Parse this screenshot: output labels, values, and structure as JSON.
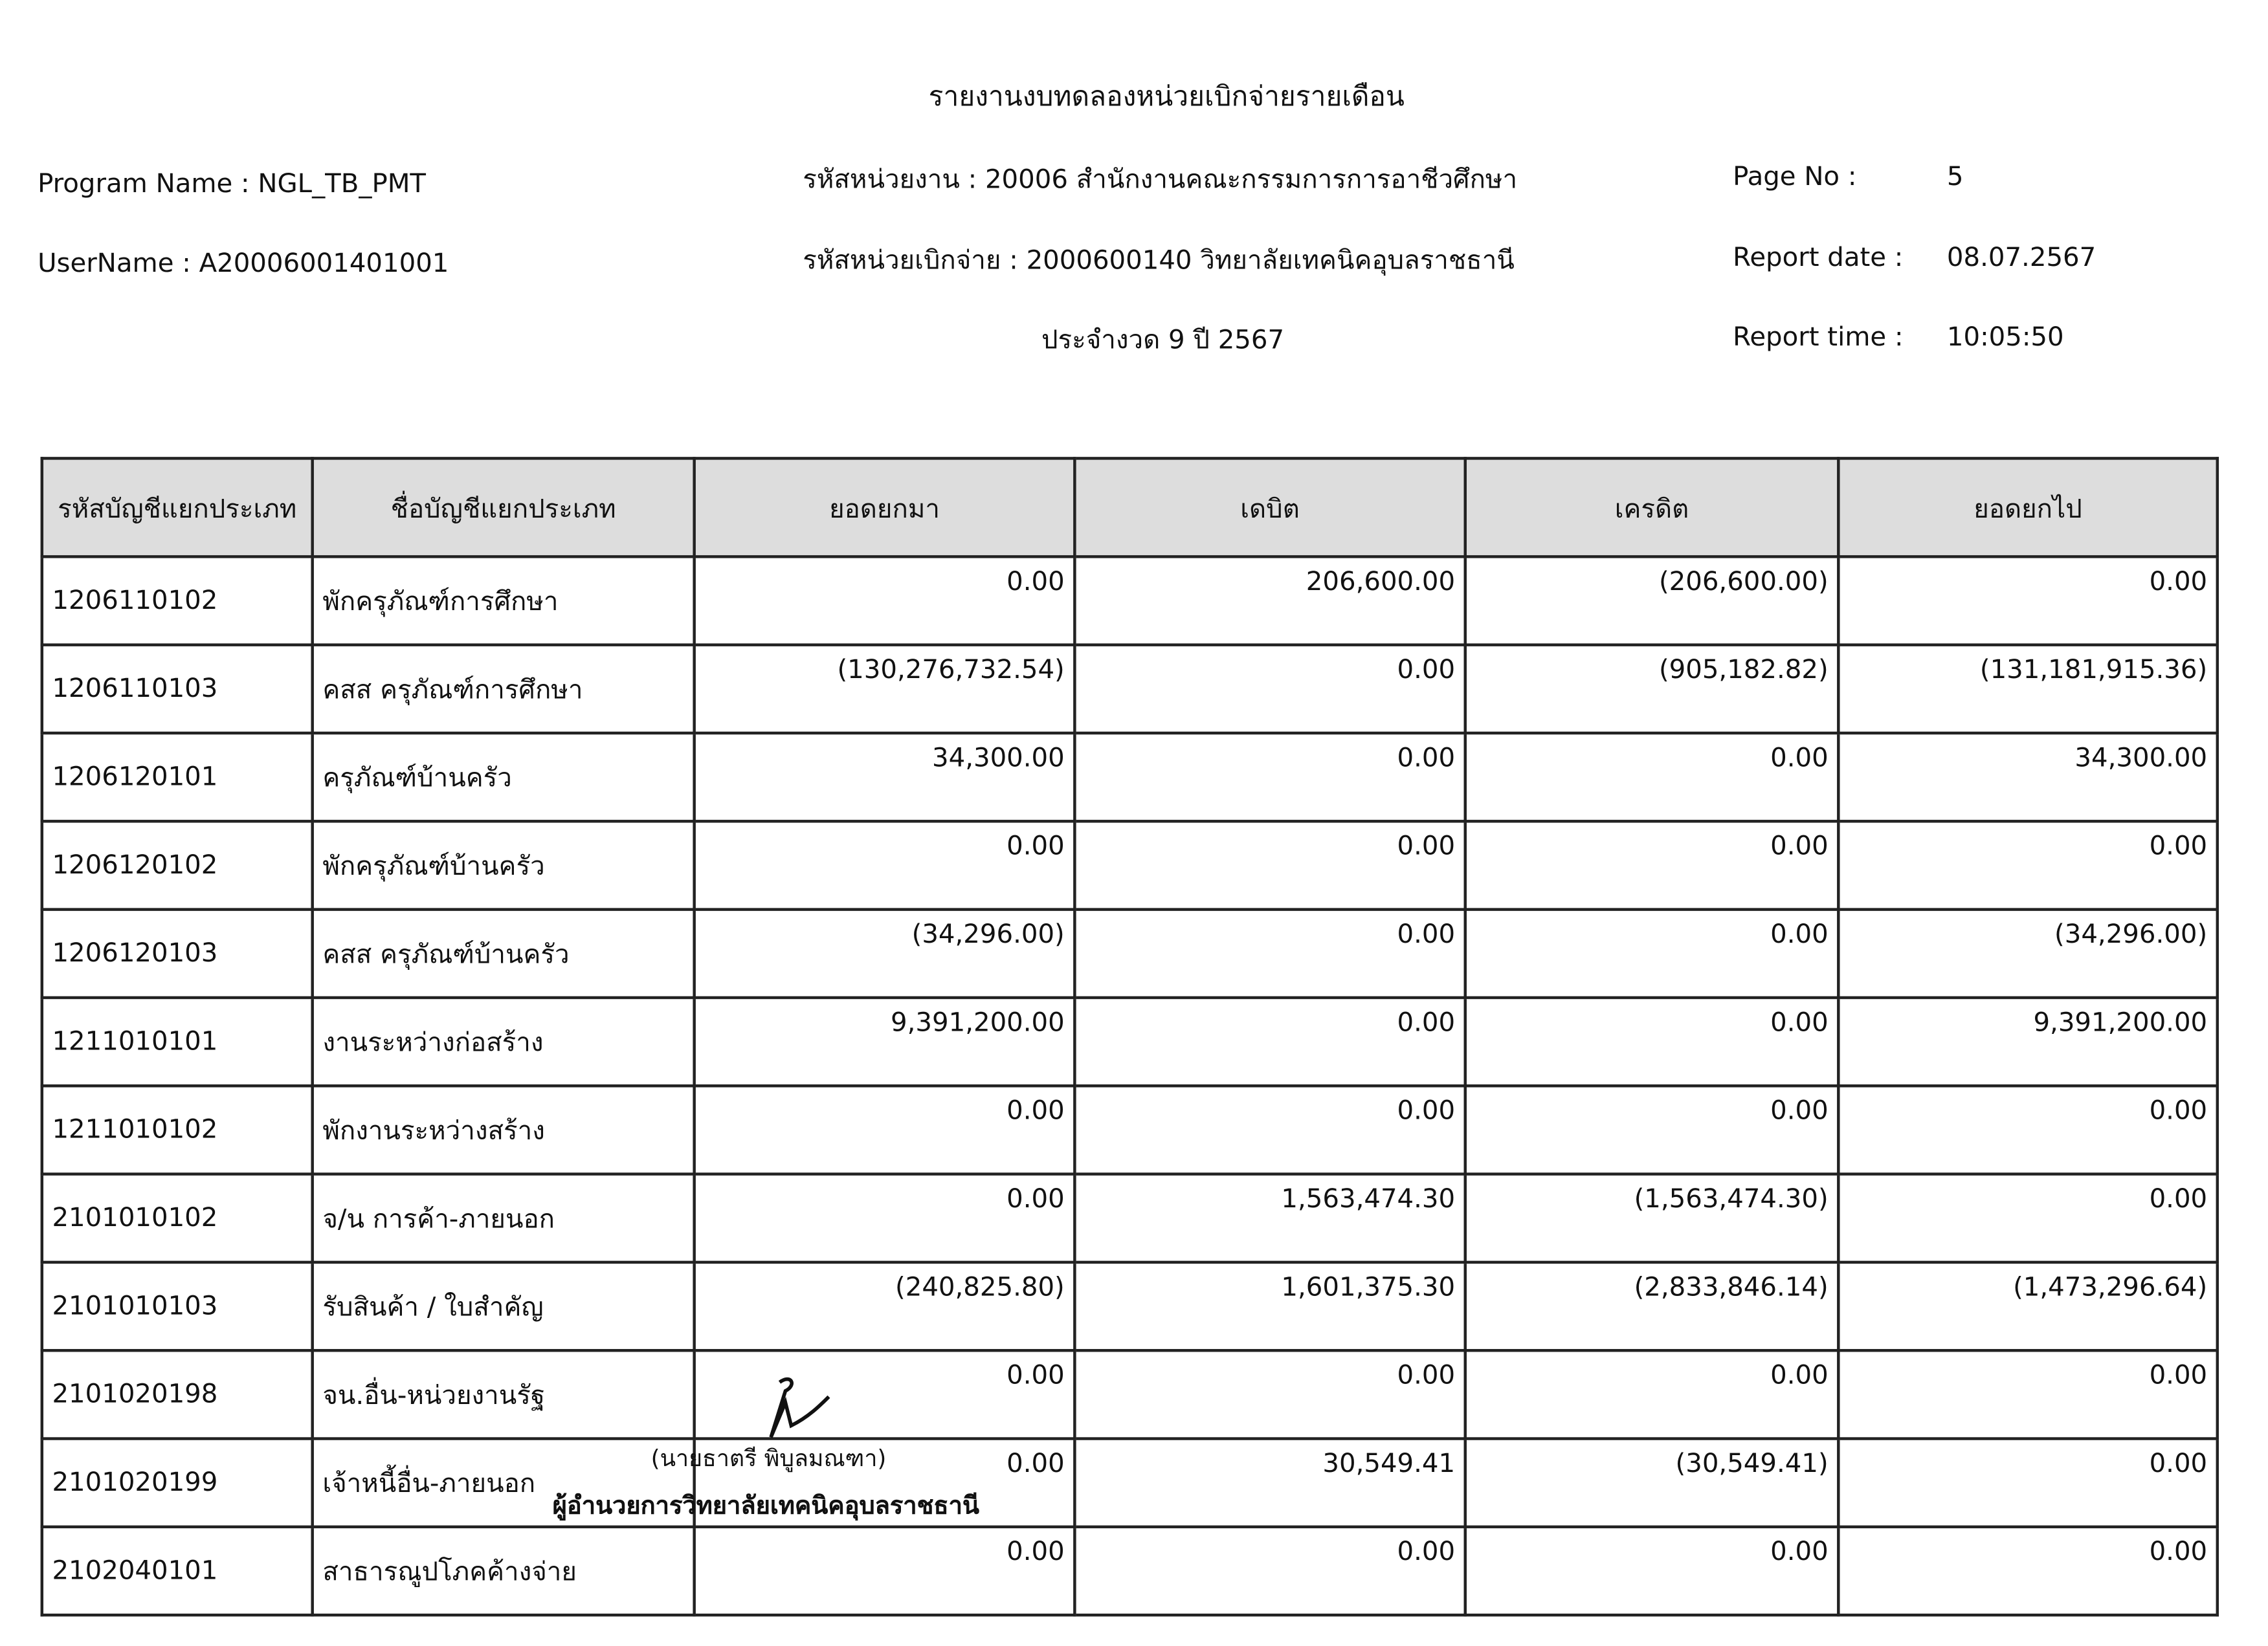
{
  "header": {
    "title": "รายงานงบทดลองหน่วยเบิกจ่ายรายเดือน",
    "program_name": "Program Name : NGL_TB_PMT",
    "user_name": "UserName : A20006001401001",
    "agency": "รหัสหน่วยงาน : 20006 สำนักงานคณะกรรมการการอาชีวศึกษา",
    "disbursing_unit": "รหัสหน่วยเบิกจ่าย : 2000600140 วิทยาลัยเทคนิคอุบลราชธานี",
    "period": "ประจำงวด 9 ปี 2567",
    "page_no_label": "Page No :",
    "page_no": "5",
    "report_date_label": "Report date :",
    "report_date": "08.07.2567",
    "report_time_label": "Report time :",
    "report_time": "10:05:50"
  },
  "table": {
    "columns": [
      "รหัสบัญชีแยกประเภท",
      "ชื่อบัญชีแยกประเภท",
      "ยอดยกมา",
      "เดบิต",
      "เครดิต",
      "ยอดยกไป"
    ],
    "rows": [
      [
        "1206110102",
        "พักครุภัณฑ์การศึกษา",
        "0.00",
        "206,600.00",
        "(206,600.00)",
        "0.00"
      ],
      [
        "1206110103",
        "คสส ครุภัณฑ์การศึกษา",
        "(130,276,732.54)",
        "0.00",
        "(905,182.82)",
        "(131,181,915.36)"
      ],
      [
        "1206120101",
        "ครุภัณฑ์บ้านครัว",
        "34,300.00",
        "0.00",
        "0.00",
        "34,300.00"
      ],
      [
        "1206120102",
        "พักครุภัณฑ์บ้านครัว",
        "0.00",
        "0.00",
        "0.00",
        "0.00"
      ],
      [
        "1206120103",
        "คสส ครุภัณฑ์บ้านครัว",
        "(34,296.00)",
        "0.00",
        "0.00",
        "(34,296.00)"
      ],
      [
        "1211010101",
        "งานระหว่างก่อสร้าง",
        "9,391,200.00",
        "0.00",
        "0.00",
        "9,391,200.00"
      ],
      [
        "1211010102",
        "พักงานระหว่างสร้าง",
        "0.00",
        "0.00",
        "0.00",
        "0.00"
      ],
      [
        "2101010102",
        "จ/น การค้า-ภายนอก",
        "0.00",
        "1,563,474.30",
        "(1,563,474.30)",
        "0.00"
      ],
      [
        "2101010103",
        "รับสินค้า / ใบสำคัญ",
        "(240,825.80)",
        "1,601,375.30",
        "(2,833,846.14)",
        "(1,473,296.64)"
      ],
      [
        "2101020198",
        "จน.อื่น-หน่วยงานรัฐ",
        "0.00",
        "0.00",
        "0.00",
        "0.00"
      ],
      [
        "2101020199",
        "เจ้าหนี้อื่น-ภายนอก",
        "0.00",
        "30,549.41",
        "(30,549.41)",
        "0.00"
      ],
      [
        "2102040101",
        "สาธารณูปโภคค้างจ่าย",
        "0.00",
        "0.00",
        "0.00",
        "0.00"
      ]
    ]
  },
  "signature": {
    "name": "(นายธาตรี พิบูลมณฑา)",
    "position": "ผู้อำนวยการวิทยาลัยเทคนิคอุบลราชธานี"
  }
}
